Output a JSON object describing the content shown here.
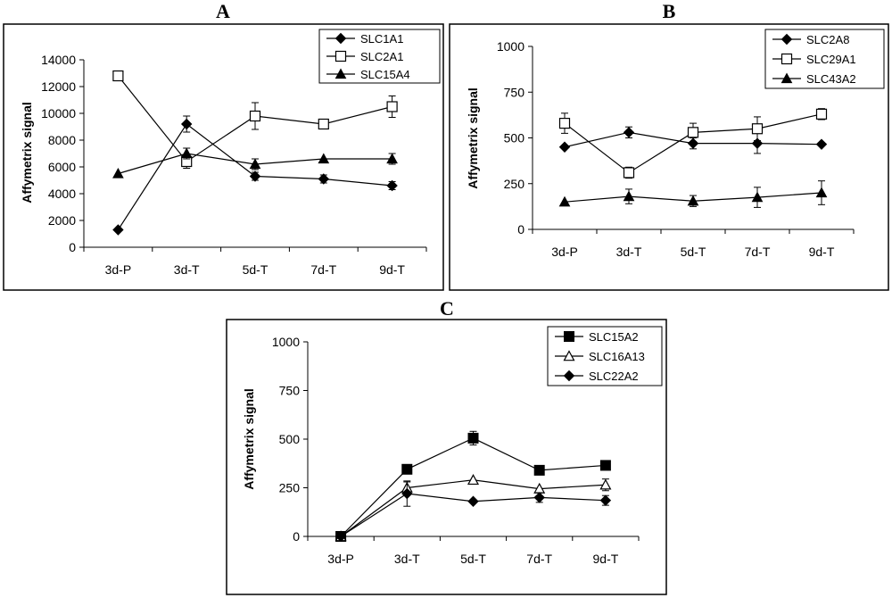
{
  "chart_data": [
    {
      "type": "line",
      "panel_label": "A",
      "title": "",
      "ylabel": "Affymetrix signal",
      "xlabel": "",
      "categories": [
        "3d-P",
        "3d-T",
        "5d-T",
        "7d-T",
        "9d-T"
      ],
      "ylim": [
        0,
        14000
      ],
      "yticks": [
        0,
        2000,
        4000,
        6000,
        8000,
        10000,
        12000,
        14000
      ],
      "yticklabels": [
        "0",
        "2000",
        "4000",
        "6000",
        "8000",
        "10000",
        "12000",
        "14000"
      ],
      "legend": "top-right",
      "series": [
        {
          "name": "SLC1A1",
          "marker": "diamond",
          "values": [
            1300,
            9200,
            5300,
            5100,
            4600
          ],
          "errors": [
            0,
            600,
            300,
            300,
            300
          ]
        },
        {
          "name": "SLC2A1",
          "marker": "square-open",
          "values": [
            12800,
            6400,
            9800,
            9200,
            10500
          ],
          "errors": [
            0,
            500,
            1000,
            0,
            800
          ]
        },
        {
          "name": "SLC15A4",
          "marker": "triangle",
          "values": [
            5500,
            7000,
            6200,
            6600,
            6600
          ],
          "errors": [
            0,
            400,
            400,
            0,
            400
          ]
        }
      ]
    },
    {
      "type": "line",
      "panel_label": "B",
      "title": "",
      "ylabel": "Affymetrix signal",
      "xlabel": "",
      "categories": [
        "3d-P",
        "3d-T",
        "5d-T",
        "7d-T",
        "9d-T"
      ],
      "ylim": [
        0,
        1000
      ],
      "yticks": [
        0,
        250,
        500,
        750,
        1000
      ],
      "yticklabels": [
        "0",
        "250",
        "500",
        "750",
        "1000"
      ],
      "legend": "top-right",
      "series": [
        {
          "name": "SLC2A8",
          "marker": "diamond",
          "values": [
            450,
            530,
            470,
            470,
            465
          ],
          "errors": [
            0,
            30,
            30,
            55,
            0
          ]
        },
        {
          "name": "SLC29A1",
          "marker": "square-open",
          "values": [
            580,
            310,
            530,
            550,
            630
          ],
          "errors": [
            55,
            30,
            50,
            65,
            30
          ]
        },
        {
          "name": "SLC43A2",
          "marker": "triangle",
          "values": [
            150,
            180,
            155,
            175,
            200
          ],
          "errors": [
            0,
            40,
            30,
            55,
            65
          ]
        }
      ]
    },
    {
      "type": "line",
      "panel_label": "C",
      "title": "",
      "ylabel": "Affymetrix signal",
      "xlabel": "",
      "categories": [
        "3d-P",
        "3d-T",
        "5d-T",
        "7d-T",
        "9d-T"
      ],
      "ylim": [
        0,
        1000
      ],
      "yticks": [
        0,
        250,
        500,
        750,
        1000
      ],
      "yticklabels": [
        "0",
        "250",
        "500",
        "750",
        "1000"
      ],
      "legend": "top-right",
      "series": [
        {
          "name": "SLC15A2",
          "marker": "square",
          "values": [
            0,
            345,
            505,
            340,
            365
          ],
          "errors": [
            0,
            0,
            35,
            0,
            0
          ]
        },
        {
          "name": "SLC16A13",
          "marker": "triangle-open",
          "values": [
            0,
            250,
            290,
            245,
            265
          ],
          "errors": [
            0,
            30,
            0,
            0,
            30
          ]
        },
        {
          "name": "SLC22A2",
          "marker": "diamond",
          "values": [
            0,
            220,
            180,
            200,
            185
          ],
          "errors": [
            0,
            65,
            0,
            25,
            25
          ]
        }
      ]
    }
  ]
}
